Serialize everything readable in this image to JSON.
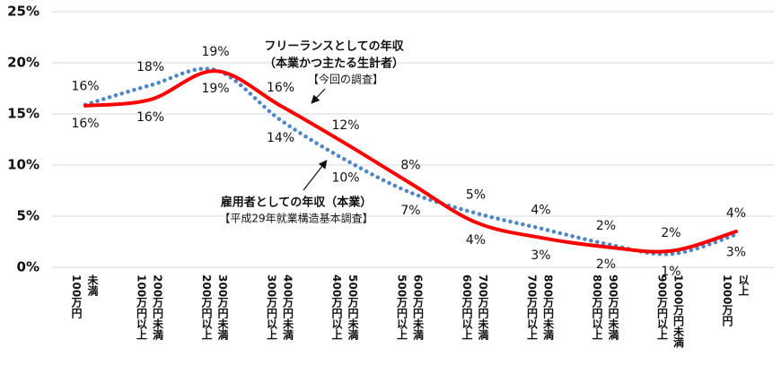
{
  "chart_data": {
    "type": "line",
    "categories": [
      [
        "100万円",
        "未満"
      ],
      [
        "100万円以上",
        "200万円未満"
      ],
      [
        "200万円以上",
        "300万円未満"
      ],
      [
        "300万円以上",
        "400万円未満"
      ],
      [
        "400万円以上",
        "500万円未満"
      ],
      [
        "500万円以上",
        "600万円未満"
      ],
      [
        "600万円以上",
        "700万円未満"
      ],
      [
        "700万円以上",
        "800万円未満"
      ],
      [
        "800万円以上",
        "900万円未満"
      ],
      [
        "900万円以上",
        "1000万円未満"
      ],
      [
        "1000万円",
        "以上"
      ]
    ],
    "highlight_category": 2,
    "highlight_color": "#ff0000",
    "series": [
      {
        "name": "フリーランスとしての年収",
        "color": "#ff0000",
        "style": "solid",
        "values": [
          15.8,
          16.4,
          19.2,
          15.8,
          12.1,
          8.2,
          4.4,
          2.9,
          2.0,
          1.6,
          3.5
        ],
        "value_labels": [
          "16%",
          "16%",
          "19%",
          "16%",
          "12%",
          "8%",
          "4%",
          "3%",
          "2%",
          "2%",
          "4%"
        ]
      },
      {
        "name": "雇用者としての年収",
        "color": "#4f86c6",
        "style": "dotted",
        "values": [
          15.9,
          17.8,
          19.3,
          14.4,
          10.5,
          7.3,
          5.3,
          3.8,
          2.3,
          1.3,
          3.2
        ],
        "value_labels": [
          "16%",
          "18%",
          "19%",
          "14%",
          "10%",
          "7%",
          "5%",
          "4%",
          "2%",
          "1%",
          "3%"
        ]
      }
    ],
    "annotations": {
      "freelance": [
        "フリーランスとしての年収",
        "（本業かつ主たる生計者）",
        "【今回の調査】"
      ],
      "employee": [
        "雇用者としての年収（本業）",
        "【平成29年就業構造基本調査】"
      ]
    },
    "ylim": [
      0,
      25
    ],
    "yticks": [
      {
        "value": 0,
        "label": "0%"
      },
      {
        "value": 5,
        "label": "5%"
      },
      {
        "value": 10,
        "label": "10%"
      },
      {
        "value": 15,
        "label": "15%"
      },
      {
        "value": 20,
        "label": "20%"
      },
      {
        "value": 25,
        "label": "25%"
      }
    ],
    "grid": true
  }
}
